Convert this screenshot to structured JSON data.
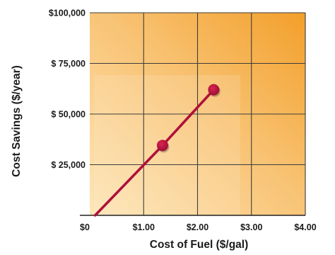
{
  "chart_data": {
    "type": "line",
    "xlabel": "Cost of Fuel  ($/gal)",
    "ylabel": "Cost  Savings  ($/year)",
    "xlim": [
      0,
      4
    ],
    "ylim": [
      0,
      100000
    ],
    "x_ticks": [
      {
        "value": 0,
        "label": "$0"
      },
      {
        "value": 1,
        "label": "$1.00"
      },
      {
        "value": 2,
        "label": "$2.00"
      },
      {
        "value": 3,
        "label": "$3.00"
      },
      {
        "value": 4,
        "label": "$4.00"
      }
    ],
    "y_ticks": [
      {
        "value": 25000,
        "label": "$ 25,000"
      },
      {
        "value": 50000,
        "label": "$ 50,000"
      },
      {
        "value": 75000,
        "label": "$ 75,000"
      },
      {
        "value": 100000,
        "label": "$100,000"
      }
    ],
    "grid": true,
    "series": [
      {
        "x": [
          0.1,
          1.35,
          2.3
        ],
        "y": [
          0,
          34500,
          62000
        ],
        "markers": [
          false,
          true,
          true
        ]
      }
    ],
    "colors": {
      "line": "#b0103a",
      "marker": "#b0103a",
      "background_light": "#fde6b8",
      "background_dark": "#f39f2a",
      "grid": "#3d3d3d"
    }
  }
}
